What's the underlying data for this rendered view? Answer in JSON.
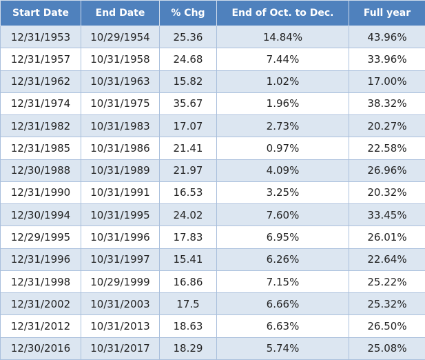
{
  "table": {
    "header": [
      "Start Date",
      "End Date",
      "% Chg",
      "End of Oct. to Dec.",
      "Full year"
    ],
    "rows": [
      [
        "12/31/1953",
        "10/29/1954",
        "25.36",
        "14.84%",
        "43.96%"
      ],
      [
        "12/31/1957",
        "10/31/1958",
        "24.68",
        "7.44%",
        "33.96%"
      ],
      [
        "12/31/1962",
        "10/31/1963",
        "15.82",
        "1.02%",
        "17.00%"
      ],
      [
        "12/31/1974",
        "10/31/1975",
        "35.67",
        "1.96%",
        "38.32%"
      ],
      [
        "12/31/1982",
        "10/31/1983",
        "17.07",
        "2.73%",
        "20.27%"
      ],
      [
        "12/31/1985",
        "10/31/1986",
        "21.41",
        "0.97%",
        "22.58%"
      ],
      [
        "12/30/1988",
        "10/31/1989",
        "21.97",
        "4.09%",
        "26.96%"
      ],
      [
        "12/31/1990",
        "10/31/1991",
        "16.53",
        "3.25%",
        "20.32%"
      ],
      [
        "12/30/1994",
        "10/31/1995",
        "24.02",
        "7.60%",
        "33.45%"
      ],
      [
        "12/29/1995",
        "10/31/1996",
        "17.83",
        "6.95%",
        "26.01%"
      ],
      [
        "12/31/1996",
        "10/31/1997",
        "15.41",
        "6.26%",
        "22.64%"
      ],
      [
        "12/31/1998",
        "10/29/1999",
        "16.86",
        "7.15%",
        "25.22%"
      ],
      [
        "12/31/2002",
        "10/31/2003",
        "17.5",
        "6.66%",
        "25.32%"
      ],
      [
        "12/31/2012",
        "10/31/2013",
        "18.63",
        "6.63%",
        "26.50%"
      ],
      [
        "12/30/2016",
        "10/31/2017",
        "18.29",
        "5.74%",
        "25.08%"
      ]
    ]
  }
}
